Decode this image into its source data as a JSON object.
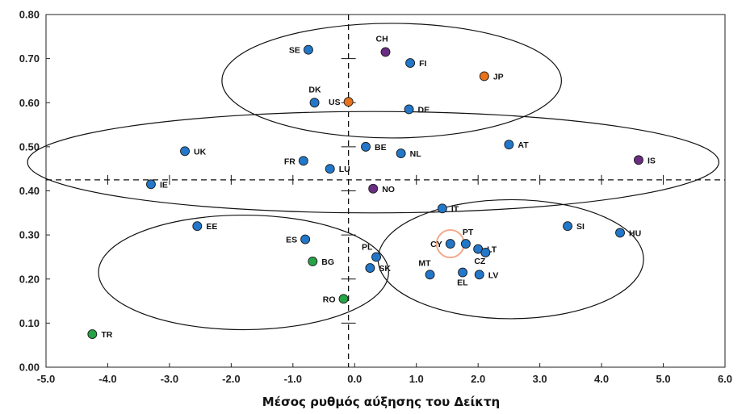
{
  "chart_data": {
    "type": "scatter",
    "title": "",
    "xlabel": "Μέσος ρυθμός αύξησης του Δείκτη",
    "ylabel": "",
    "xlim": [
      -5.0,
      6.0
    ],
    "ylim": [
      0.0,
      0.8
    ],
    "x_ticks": [
      "-5.0",
      "-4.0",
      "-3.0",
      "-2.0",
      "-1.0",
      "0.0",
      "1.0",
      "2.0",
      "3.0",
      "4.0",
      "5.0",
      "6.0"
    ],
    "y_ticks": [
      "0.00",
      "0.10",
      "0.20",
      "0.30",
      "0.40",
      "0.50",
      "0.60",
      "0.70",
      "0.80"
    ],
    "reference_lines": {
      "x": -0.1,
      "y": 0.425
    },
    "colors": {
      "eu": "#2277c9",
      "efta": "#6b2d84",
      "candidate": "#27a347",
      "other": "#e8721c",
      "highlight_ring": "#f2a98a"
    },
    "points": [
      {
        "label": "SE",
        "x": -0.75,
        "y": 0.72,
        "group": "eu"
      },
      {
        "label": "CH",
        "x": 0.5,
        "y": 0.715,
        "group": "efta"
      },
      {
        "label": "FI",
        "x": 0.9,
        "y": 0.69,
        "group": "eu"
      },
      {
        "label": "JP",
        "x": 2.1,
        "y": 0.66,
        "group": "other"
      },
      {
        "label": "DK",
        "x": -0.65,
        "y": 0.6,
        "group": "eu"
      },
      {
        "label": "US",
        "x": -0.1,
        "y": 0.602,
        "group": "other"
      },
      {
        "label": "DE",
        "x": 0.88,
        "y": 0.585,
        "group": "eu"
      },
      {
        "label": "UK",
        "x": -2.75,
        "y": 0.49,
        "group": "eu"
      },
      {
        "label": "BE",
        "x": 0.18,
        "y": 0.5,
        "group": "eu"
      },
      {
        "label": "NL",
        "x": 0.75,
        "y": 0.485,
        "group": "eu"
      },
      {
        "label": "AT",
        "x": 2.5,
        "y": 0.505,
        "group": "eu"
      },
      {
        "label": "FR",
        "x": -0.83,
        "y": 0.468,
        "group": "eu"
      },
      {
        "label": "LU",
        "x": -0.4,
        "y": 0.45,
        "group": "eu"
      },
      {
        "label": "IS",
        "x": 4.6,
        "y": 0.47,
        "group": "efta"
      },
      {
        "label": "IE",
        "x": -3.3,
        "y": 0.415,
        "group": "eu"
      },
      {
        "label": "NO",
        "x": 0.3,
        "y": 0.405,
        "group": "efta"
      },
      {
        "label": "IT",
        "x": 1.42,
        "y": 0.36,
        "group": "eu"
      },
      {
        "label": "EE",
        "x": -2.55,
        "y": 0.32,
        "group": "eu"
      },
      {
        "label": "SI",
        "x": 3.45,
        "y": 0.32,
        "group": "eu"
      },
      {
        "label": "HU",
        "x": 4.3,
        "y": 0.305,
        "group": "eu"
      },
      {
        "label": "ES",
        "x": -0.8,
        "y": 0.29,
        "group": "eu"
      },
      {
        "label": "CY",
        "x": 1.55,
        "y": 0.28,
        "group": "eu",
        "highlight": true
      },
      {
        "label": "PT",
        "x": 1.8,
        "y": 0.28,
        "group": "eu"
      },
      {
        "label": "LT",
        "x": 2.0,
        "y": 0.268,
        "group": "eu"
      },
      {
        "label": "CZ",
        "x": 2.12,
        "y": 0.26,
        "group": "eu"
      },
      {
        "label": "PL",
        "x": 0.35,
        "y": 0.25,
        "group": "eu"
      },
      {
        "label": "BG",
        "x": -0.68,
        "y": 0.24,
        "group": "candidate"
      },
      {
        "label": "SK",
        "x": 0.25,
        "y": 0.225,
        "group": "eu"
      },
      {
        "label": "EL",
        "x": 1.75,
        "y": 0.215,
        "group": "eu"
      },
      {
        "label": "MT",
        "x": 1.22,
        "y": 0.21,
        "group": "eu"
      },
      {
        "label": "LV",
        "x": 2.02,
        "y": 0.21,
        "group": "eu"
      },
      {
        "label": "RO",
        "x": -0.18,
        "y": 0.155,
        "group": "candidate"
      },
      {
        "label": "TR",
        "x": -4.25,
        "y": 0.075,
        "group": "candidate"
      }
    ],
    "clusters": [
      {
        "name": "top",
        "cx": 0.6,
        "cy": 0.65,
        "rx": 2.75,
        "ry": 0.13
      },
      {
        "name": "middle",
        "cx": 0.3,
        "cy": 0.465,
        "rx": 5.6,
        "ry": 0.115
      },
      {
        "name": "bottom-left",
        "cx": -1.8,
        "cy": 0.215,
        "rx": 2.35,
        "ry": 0.13
      },
      {
        "name": "bottom-right",
        "cx": 2.53,
        "cy": 0.245,
        "rx": 2.15,
        "ry": 0.135
      }
    ]
  }
}
